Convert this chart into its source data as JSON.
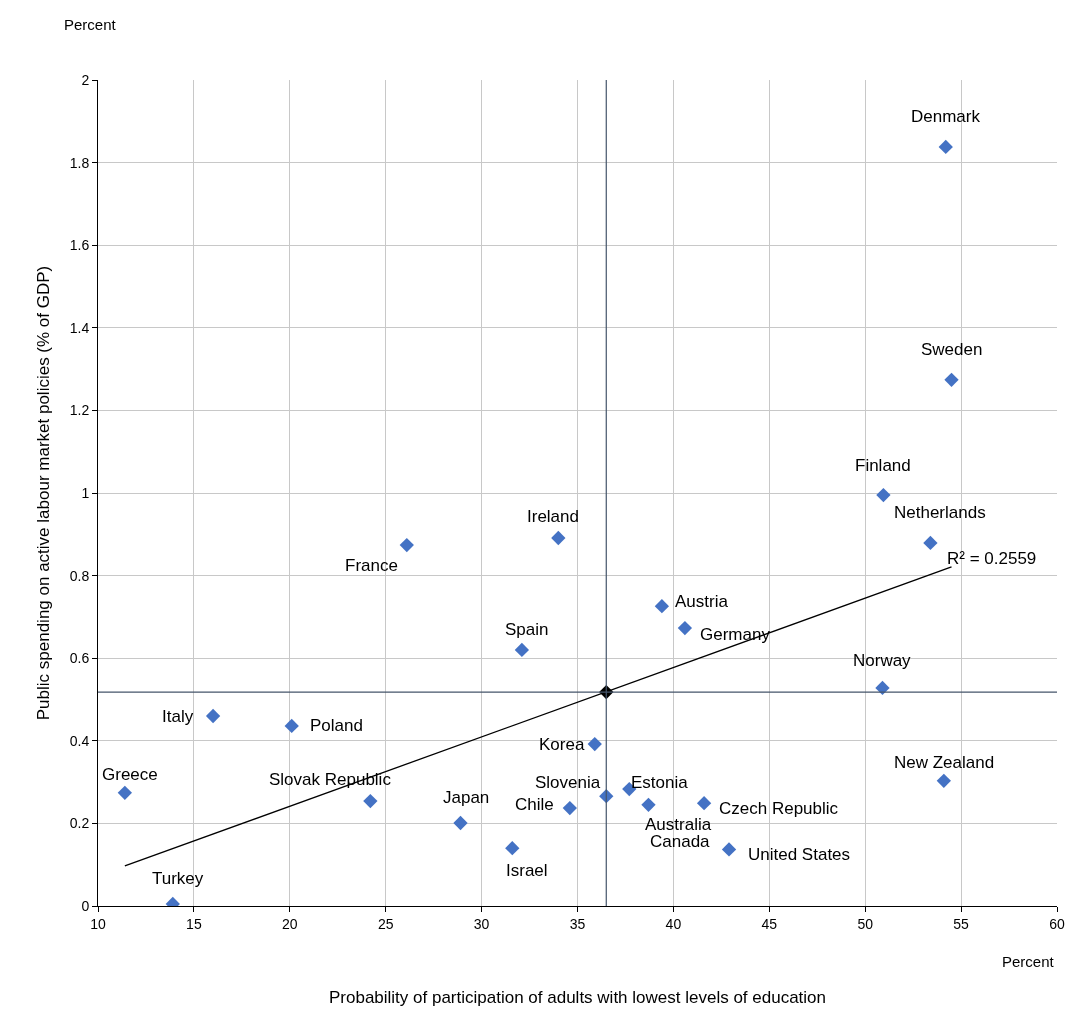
{
  "chart_data": {
    "type": "scatter",
    "xlabel": "Probability of participation of adults with lowest levels of education",
    "ylabel": "Public spending on active labour market policies (% of GDP)",
    "series": [
      {
        "color": "#4472c4",
        "marker": "diamond",
        "x": [
          54.2,
          54.5,
          50.95,
          53.4,
          26.1,
          34.0,
          39.4,
          40.6,
          32.1,
          50.9,
          16.0,
          20.1,
          35.9,
          11.4,
          24.2,
          28.9,
          36.5,
          34.6,
          37.7,
          38.7,
          41.6,
          54.1,
          31.6,
          42.7,
          42.9,
          13.9
        ],
        "values": [
          1.838,
          1.274,
          0.995,
          0.879,
          0.874,
          0.891,
          0.726,
          0.673,
          0.62,
          0.528,
          0.46,
          0.436,
          0.392,
          0.274,
          0.254,
          0.201,
          0.266,
          0.237,
          0.283,
          0.245,
          0.249,
          0.303,
          0.14,
          null,
          0.137,
          0.005
        ]
      },
      {
        "type": "scatter",
        "color": "#000000",
        "marker": "diamond",
        "x": [
          36.5
        ],
        "values": [
          0.518
        ]
      },
      {
        "type": "line",
        "color": "#000000",
        "marker": "none",
        "x": [
          11.4,
          54.5
        ],
        "values": [
          0.097,
          0.821
        ]
      }
    ],
    "ref_lines": [
      {
        "axis": "x",
        "value": 36.5,
        "color": "#44546a"
      },
      {
        "axis": "y",
        "value": 0.518,
        "color": "#44546a"
      }
    ],
    "annotations": [
      {
        "text": "Denmark",
        "x": 54.2,
        "y": 1.838
      },
      {
        "text": "Sweden",
        "x": 54.5,
        "y": 1.274
      },
      {
        "text": "Finland",
        "x": 50.95,
        "y": 0.995
      },
      {
        "text": "Netherlands",
        "x": 53.4,
        "y": 0.879
      },
      {
        "text": "France",
        "x": 26.1,
        "y": 0.874
      },
      {
        "text": "Ireland",
        "x": 34.0,
        "y": 0.891
      },
      {
        "text": "Austria",
        "x": 39.4,
        "y": 0.726
      },
      {
        "text": "Germany",
        "x": 40.6,
        "y": 0.673
      },
      {
        "text": "Spain",
        "x": 32.1,
        "y": 0.62
      },
      {
        "text": "Norway",
        "x": 50.9,
        "y": 0.528
      },
      {
        "text": "Italy",
        "x": 16.0,
        "y": 0.46
      },
      {
        "text": "Poland",
        "x": 20.1,
        "y": 0.436
      },
      {
        "text": "Korea",
        "x": 35.9,
        "y": 0.392
      },
      {
        "text": "Greece",
        "x": 11.4,
        "y": 0.274
      },
      {
        "text": "Slovak Republic",
        "x": 24.2,
        "y": 0.254
      },
      {
        "text": "Japan",
        "x": 28.9,
        "y": 0.201
      },
      {
        "text": "Slovenia",
        "x": 36.5,
        "y": 0.266
      },
      {
        "text": "Chile",
        "x": 34.6,
        "y": 0.237
      },
      {
        "text": "Estonia",
        "x": 37.7,
        "y": 0.283
      },
      {
        "text": "Australia",
        "x": 38.7,
        "y": 0.245
      },
      {
        "text": "Czech Republic",
        "x": 41.6,
        "y": 0.249
      },
      {
        "text": "New Zealand",
        "x": 54.1,
        "y": 0.303
      },
      {
        "text": "Israel",
        "x": 31.6,
        "y": 0.14
      },
      {
        "text": "Canada",
        "x": 42.7,
        "y": 0.14
      },
      {
        "text": "United States",
        "x": 42.9,
        "y": 0.137
      },
      {
        "text": "Turkey",
        "x": 13.9,
        "y": 0.005
      },
      {
        "text": "R² = 0.2559",
        "x": 54.5,
        "y": 0.821
      },
      "Percent",
      "Percent"
    ],
    "xlim": [
      10,
      60
    ],
    "xticks": [
      10,
      15,
      20,
      25,
      30,
      35,
      40,
      45,
      50,
      55,
      60
    ],
    "ylim": [
      0,
      2
    ],
    "yticks": [
      0,
      0.2,
      0.4,
      0.6,
      0.8,
      1,
      1.2,
      1.4,
      1.6,
      1.8,
      2
    ],
    "grid": true
  }
}
